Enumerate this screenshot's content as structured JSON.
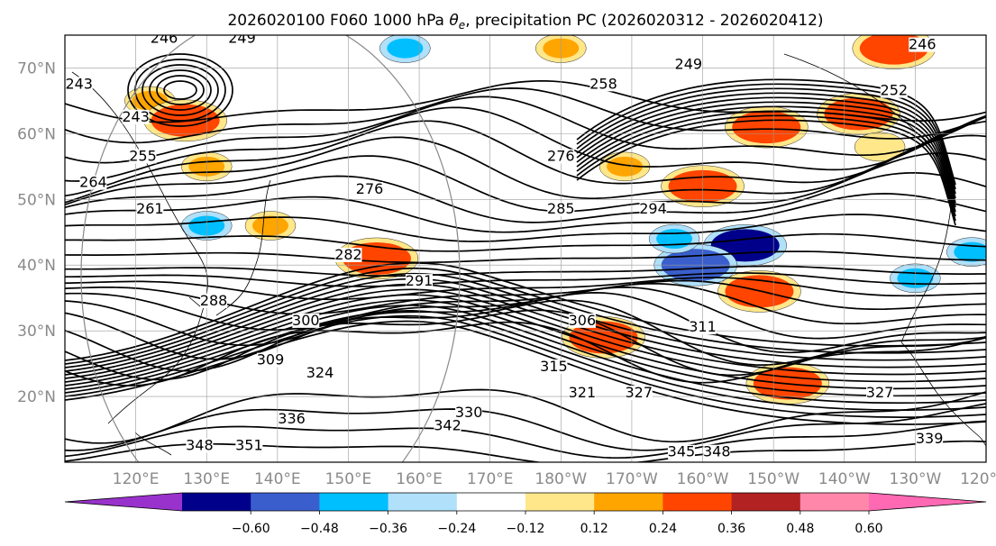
{
  "title": {
    "run": "2026020100 F060 1000 hPa",
    "var_symbol": "θ",
    "var_sub": "e",
    "rest": ", precipitation PC (2026020312 - 2026020412)"
  },
  "map": {
    "lat_range": [
      10,
      75
    ],
    "lon_range": [
      110,
      240
    ],
    "lat_ticks": [
      "20°N",
      "30°N",
      "40°N",
      "50°N",
      "60°N",
      "70°N"
    ],
    "lon_ticks": [
      "120°E",
      "130°E",
      "140°E",
      "150°E",
      "160°E",
      "170°E",
      "180°W",
      "170°W",
      "160°W",
      "150°W",
      "140°W",
      "130°W",
      "120°W"
    ],
    "gridlines": true,
    "contour_labels": [
      {
        "text": "246",
        "lon": 124,
        "lat": 74
      },
      {
        "text": "249",
        "lon": 135,
        "lat": 74
      },
      {
        "text": "243",
        "lon": 112,
        "lat": 67
      },
      {
        "text": "243",
        "lon": 120,
        "lat": 62
      },
      {
        "text": "255",
        "lon": 121,
        "lat": 56
      },
      {
        "text": "264",
        "lon": 114,
        "lat": 52
      },
      {
        "text": "261",
        "lon": 122,
        "lat": 48
      },
      {
        "text": "276",
        "lon": 180,
        "lat": 56
      },
      {
        "text": "276",
        "lon": 153,
        "lat": 51
      },
      {
        "text": "258",
        "lon": 186,
        "lat": 67
      },
      {
        "text": "249",
        "lon": 198,
        "lat": 70
      },
      {
        "text": "285",
        "lon": 180,
        "lat": 48
      },
      {
        "text": "294",
        "lon": 193,
        "lat": 48
      },
      {
        "text": "282",
        "lon": 150,
        "lat": 41
      },
      {
        "text": "291",
        "lon": 160,
        "lat": 37
      },
      {
        "text": "288",
        "lon": 131,
        "lat": 34
      },
      {
        "text": "300",
        "lon": 144,
        "lat": 31
      },
      {
        "text": "306",
        "lon": 183,
        "lat": 31
      },
      {
        "text": "311",
        "lon": 200,
        "lat": 30
      },
      {
        "text": "309",
        "lon": 139,
        "lat": 25
      },
      {
        "text": "324",
        "lon": 146,
        "lat": 23
      },
      {
        "text": "315",
        "lon": 179,
        "lat": 24
      },
      {
        "text": "321",
        "lon": 183,
        "lat": 20
      },
      {
        "text": "327",
        "lon": 191,
        "lat": 20
      },
      {
        "text": "330",
        "lon": 167,
        "lat": 17
      },
      {
        "text": "342",
        "lon": 164,
        "lat": 15
      },
      {
        "text": "336",
        "lon": 142,
        "lat": 16
      },
      {
        "text": "327",
        "lon": 225,
        "lat": 20
      },
      {
        "text": "339",
        "lon": 232,
        "lat": 13
      },
      {
        "text": "345",
        "lon": 197,
        "lat": 11
      },
      {
        "text": "348",
        "lon": 202,
        "lat": 11
      },
      {
        "text": "348",
        "lon": 129,
        "lat": 12
      },
      {
        "text": "351",
        "lon": 136,
        "lat": 12
      },
      {
        "text": "246",
        "lon": 231,
        "lat": 73
      },
      {
        "text": "252",
        "lon": 227,
        "lat": 66
      }
    ],
    "precip_patches": [
      {
        "value": 0.3,
        "lon": 122,
        "lat": 65
      },
      {
        "value": 0.42,
        "lon": 127,
        "lat": 62
      },
      {
        "value": 0.3,
        "lon": 130,
        "lat": 55
      },
      {
        "value": 0.3,
        "lon": 139,
        "lat": 46
      },
      {
        "value": 0.42,
        "lon": 154,
        "lat": 41
      },
      {
        "value": 0.3,
        "lon": 189,
        "lat": 55
      },
      {
        "value": 0.42,
        "lon": 209,
        "lat": 61
      },
      {
        "value": 0.42,
        "lon": 222,
        "lat": 63
      },
      {
        "value": 0.42,
        "lon": 200,
        "lat": 52
      },
      {
        "value": 0.42,
        "lon": 208,
        "lat": 36
      },
      {
        "value": 0.42,
        "lon": 186,
        "lat": 29
      },
      {
        "value": 0.42,
        "lon": 212,
        "lat": 22
      },
      {
        "value": 0.3,
        "lon": 180,
        "lat": 73
      },
      {
        "value": 0.42,
        "lon": 227,
        "lat": 73
      },
      {
        "value": 0.18,
        "lon": 225,
        "lat": 58
      },
      {
        "value": -0.54,
        "lon": 206,
        "lat": 43
      },
      {
        "value": -0.42,
        "lon": 199,
        "lat": 40
      },
      {
        "value": -0.3,
        "lon": 196,
        "lat": 44
      },
      {
        "value": -0.3,
        "lon": 130,
        "lat": 46
      },
      {
        "value": -0.3,
        "lon": 158,
        "lat": 73
      },
      {
        "value": -0.3,
        "lon": 238,
        "lat": 42
      },
      {
        "value": -0.3,
        "lon": 230,
        "lat": 38
      }
    ]
  },
  "colorbar": {
    "ticks": [
      "−0.60",
      "−0.48",
      "−0.36",
      "−0.24",
      "−0.12",
      "0.12",
      "0.24",
      "0.36",
      "0.48",
      "0.60"
    ],
    "colors": [
      "#9932cc",
      "#00008b",
      "#3a5fcd",
      "#00bfff",
      "#b0e0fa",
      "#ffffff",
      "#ffe78a",
      "#ffa500",
      "#ff4500",
      "#b22222",
      "#ff88aa",
      "#ff69b4"
    ],
    "extend": "both"
  }
}
